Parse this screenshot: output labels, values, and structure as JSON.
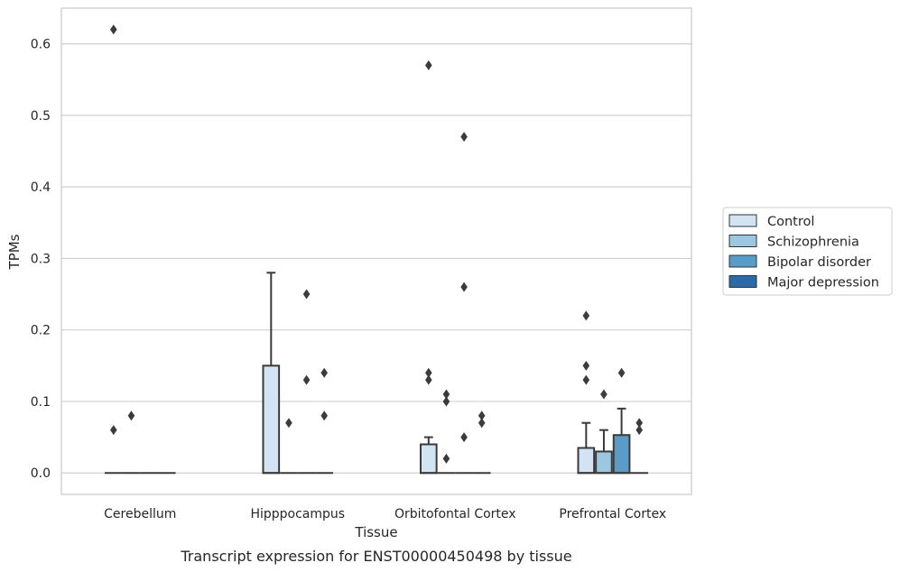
{
  "chart_data": {
    "type": "box",
    "title": "",
    "caption": "Transcript expression for ENST00000450498 by tissue",
    "xlabel": "Tissue",
    "ylabel": "TPMs",
    "ylim": [
      -0.03,
      0.65
    ],
    "yticks": [
      "0.0",
      "0.1",
      "0.2",
      "0.3",
      "0.4",
      "0.5",
      "0.6"
    ],
    "grid": "horizontal",
    "legend_position": "right",
    "categories": [
      "Cerebellum",
      "Hipppocampus",
      "Orbitofontal Cortex",
      "Prefrontal Cortex"
    ],
    "series": [
      {
        "name": "Control",
        "color": "#d2e3f3",
        "boxes": [
          {
            "q1": 0,
            "median": 0,
            "q3": 0,
            "whisker_low": 0,
            "whisker_high": 0,
            "outliers": [
              0.62,
              0.06
            ]
          },
          {
            "q1": 0,
            "median": 0,
            "q3": 0.15,
            "whisker_low": 0,
            "whisker_high": 0.28,
            "outliers": []
          },
          {
            "q1": 0,
            "median": 0,
            "q3": 0.04,
            "whisker_low": 0,
            "whisker_high": 0.05,
            "outliers": [
              0.57,
              0.14,
              0.13
            ]
          },
          {
            "q1": 0,
            "median": 0,
            "q3": 0.035,
            "whisker_low": 0,
            "whisker_high": 0.07,
            "outliers": [
              0.22,
              0.15,
              0.13
            ]
          }
        ]
      },
      {
        "name": "Schizophrenia",
        "color": "#9cc7e0",
        "boxes": [
          {
            "q1": 0,
            "median": 0,
            "q3": 0,
            "whisker_low": 0,
            "whisker_high": 0,
            "outliers": [
              0.08
            ]
          },
          {
            "q1": 0,
            "median": 0,
            "q3": 0,
            "whisker_low": 0,
            "whisker_high": 0,
            "outliers": [
              0.07
            ]
          },
          {
            "q1": 0,
            "median": 0,
            "q3": 0,
            "whisker_low": 0,
            "whisker_high": 0,
            "outliers": [
              0.11,
              0.1,
              0.02
            ]
          },
          {
            "q1": 0,
            "median": 0,
            "q3": 0.03,
            "whisker_low": 0,
            "whisker_high": 0.06,
            "outliers": [
              0.11
            ]
          }
        ]
      },
      {
        "name": "Bipolar disorder",
        "color": "#5a9cc8",
        "boxes": [
          {
            "q1": 0,
            "median": 0,
            "q3": 0,
            "whisker_low": 0,
            "whisker_high": 0,
            "outliers": []
          },
          {
            "q1": 0,
            "median": 0,
            "q3": 0,
            "whisker_low": 0,
            "whisker_high": 0,
            "outliers": [
              0.25,
              0.13
            ]
          },
          {
            "q1": 0,
            "median": 0,
            "q3": 0,
            "whisker_low": 0,
            "whisker_high": 0,
            "outliers": [
              0.47,
              0.26,
              0.05
            ]
          },
          {
            "q1": 0,
            "median": 0,
            "q3": 0.053,
            "whisker_low": 0,
            "whisker_high": 0.09,
            "outliers": [
              0.14
            ]
          }
        ]
      },
      {
        "name": "Major depression",
        "color": "#2b6aa6",
        "boxes": [
          {
            "q1": 0,
            "median": 0,
            "q3": 0,
            "whisker_low": 0,
            "whisker_high": 0,
            "outliers": []
          },
          {
            "q1": 0,
            "median": 0,
            "q3": 0,
            "whisker_low": 0,
            "whisker_high": 0,
            "outliers": [
              0.14,
              0.08
            ]
          },
          {
            "q1": 0,
            "median": 0,
            "q3": 0,
            "whisker_low": 0,
            "whisker_high": 0,
            "outliers": [
              0.08,
              0.07
            ]
          },
          {
            "q1": 0,
            "median": 0,
            "q3": 0,
            "whisker_low": 0,
            "whisker_high": 0,
            "outliers": [
              0.07,
              0.06
            ]
          }
        ]
      }
    ],
    "colors": {
      "grid": "#d0d0d0",
      "frame": "#c8c8c8",
      "line": "#3b3b3b",
      "text": "#262626"
    }
  }
}
